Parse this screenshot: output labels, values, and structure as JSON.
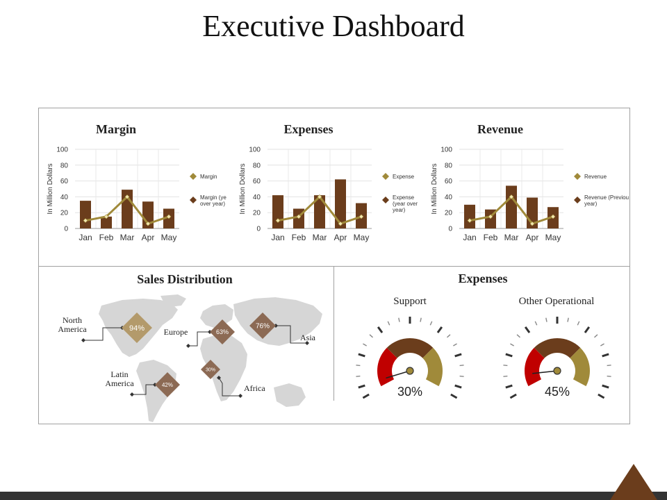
{
  "page": {
    "title": "Executive Dashboard"
  },
  "chart_data": [
    {
      "type": "bar",
      "title": "Margin",
      "ylabel": "In Million Dollars",
      "ylim": [
        0,
        100
      ],
      "yticks": [
        0,
        20,
        40,
        60,
        80,
        100
      ],
      "categories": [
        "Jan",
        "Feb",
        "Mar",
        "Apr",
        "May"
      ],
      "series": [
        {
          "name": "Margin",
          "type": "line",
          "values": [
            10,
            15,
            40,
            6,
            15
          ]
        },
        {
          "name": "Margin (year over year)",
          "type": "bar",
          "values": [
            35,
            15,
            49,
            34,
            25
          ]
        }
      ],
      "legend": "right"
    },
    {
      "type": "bar",
      "title": "Expenses",
      "ylabel": "In Million Dollars",
      "ylim": [
        0,
        100
      ],
      "yticks": [
        0,
        20,
        40,
        60,
        80,
        100
      ],
      "categories": [
        "Jan",
        "Feb",
        "Mar",
        "Apr",
        "May"
      ],
      "series": [
        {
          "name": "Expense",
          "type": "line",
          "values": [
            10,
            15,
            40,
            6,
            15
          ]
        },
        {
          "name": "Expense (year over year)",
          "type": "bar",
          "values": [
            42,
            25,
            42,
            62,
            32
          ]
        }
      ],
      "legend": "right"
    },
    {
      "type": "bar",
      "title": "Revenue",
      "ylabel": "In Million Dollars",
      "ylim": [
        0,
        100
      ],
      "yticks": [
        0,
        20,
        40,
        60,
        80,
        100
      ],
      "categories": [
        "Jan",
        "Feb",
        "Mar",
        "Apr",
        "May"
      ],
      "series": [
        {
          "name": "Revenue",
          "type": "line",
          "values": [
            10,
            15,
            40,
            6,
            15
          ]
        },
        {
          "name": "Revenue (Previous year)",
          "type": "bar",
          "values": [
            30,
            24,
            54,
            39,
            27
          ]
        }
      ],
      "legend": "right"
    }
  ],
  "sales_distribution": {
    "title": "Sales Distribution",
    "regions": [
      {
        "label": "North America",
        "value": "94%"
      },
      {
        "label": "Latin America",
        "value": "42%"
      },
      {
        "label": "Europe",
        "value": "63%"
      },
      {
        "label": "Africa",
        "value": "30%"
      },
      {
        "label": "Asia",
        "value": "76%"
      }
    ]
  },
  "expenses_gauges": {
    "title": "Expenses",
    "gauges": [
      {
        "label": "Support",
        "value": 30,
        "display": "30%"
      },
      {
        "label": "Other Operational",
        "value": 45,
        "display": "45%"
      }
    ]
  },
  "colors": {
    "bar": "#6b3d1c",
    "line": "#a08a3a",
    "gauge_red": "#c00000",
    "gauge_brown": "#6b3d1c",
    "gauge_gold": "#a08a3a",
    "diamond_light": "#b39a6b",
    "diamond_dark": "#8c6a54",
    "map": "#d6d6d6",
    "footer": "#333333",
    "corner": "#6b3d1c"
  }
}
